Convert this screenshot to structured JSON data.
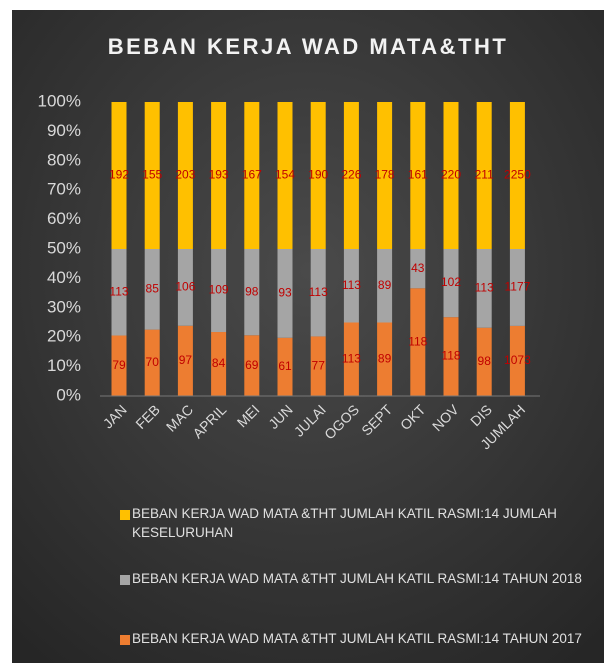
{
  "chart_data": {
    "type": "stacked_percent_bar",
    "title": "BEBAN KERJA WAD MATA&THT",
    "categories": [
      "JAN",
      "FEB",
      "MAC",
      "APRIL",
      "MEI",
      "JUN",
      "JULAI",
      "OGOS",
      "SEPT",
      "OKT",
      "NOV",
      "DIS",
      "JUMLAH"
    ],
    "series": [
      {
        "name": "BEBAN KERJA WAD MATA &THT JUMLAH KATIL RASMI:14 TAHUN 2017",
        "color": "#ed7d31",
        "values": [
          79,
          70,
          97,
          84,
          69,
          61,
          77,
          113,
          89,
          118,
          118,
          98,
          1073
        ]
      },
      {
        "name": "BEBAN KERJA WAD MATA &THT JUMLAH KATIL RASMI:14 TAHUN 2018",
        "color": "#a5a5a5",
        "values": [
          113,
          85,
          106,
          109,
          98,
          93,
          113,
          113,
          89,
          43,
          102,
          113,
          1177
        ]
      },
      {
        "name": "BEBAN KERJA WAD MATA &THT JUMLAH KATIL RASMI:14 JUMLAH KESELURUHAN",
        "color": "#ffc000",
        "values": [
          192,
          155,
          203,
          193,
          167,
          154,
          190,
          226,
          178,
          161,
          220,
          211,
          2250
        ]
      }
    ],
    "ylim": [
      0,
      100
    ],
    "yticks": [
      {
        "value": 0,
        "label": "0%"
      },
      {
        "value": 10,
        "label": "10%"
      },
      {
        "value": 20,
        "label": "20%"
      },
      {
        "value": 30,
        "label": "30%"
      },
      {
        "value": 40,
        "label": "40%"
      },
      {
        "value": 50,
        "label": "50%"
      },
      {
        "value": 60,
        "label": "60%"
      },
      {
        "value": 70,
        "label": "70%"
      },
      {
        "value": 80,
        "label": "80%"
      },
      {
        "value": 90,
        "label": "90%"
      },
      {
        "value": 100,
        "label": "100%"
      }
    ],
    "legend": "bottom",
    "grid": false
  }
}
